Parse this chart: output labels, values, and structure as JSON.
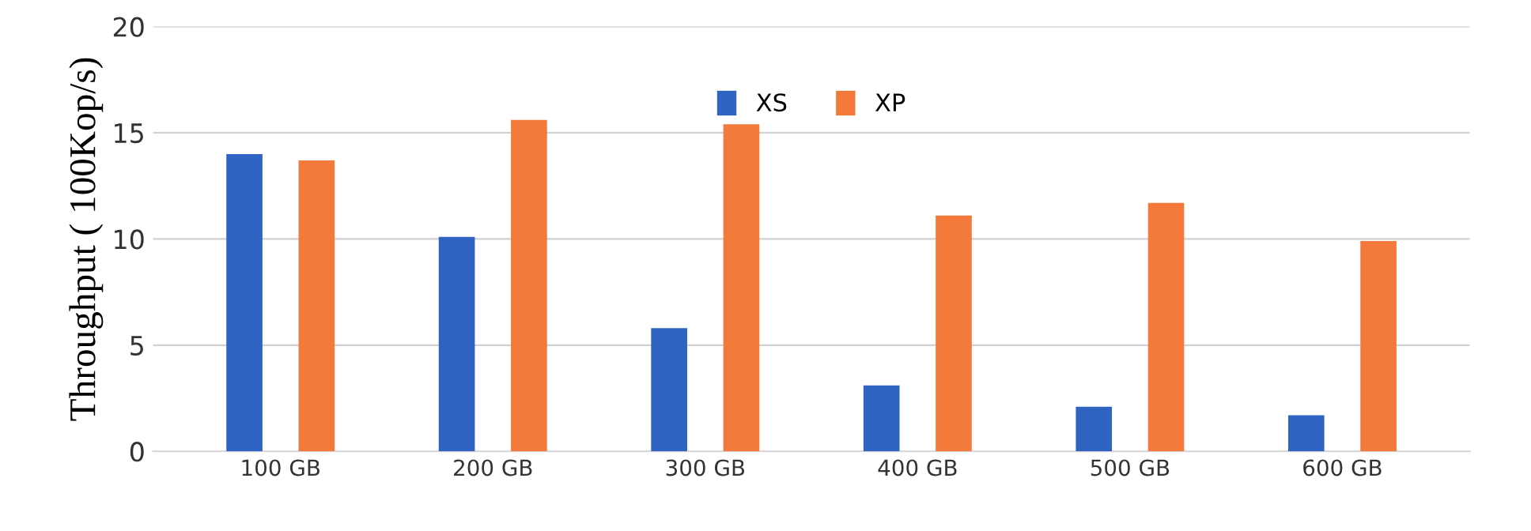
{
  "chart_data": {
    "type": "bar",
    "ylabel": "Throughput ( 100Kop/s)",
    "categories": [
      "100 GB",
      "200 GB",
      "300 GB",
      "400 GB",
      "500 GB",
      "600 GB"
    ],
    "series": [
      {
        "name": "XS",
        "color": "#3064c2",
        "values": [
          14.0,
          10.1,
          5.8,
          3.1,
          2.1,
          1.7
        ]
      },
      {
        "name": "XP",
        "color": "#f47a3c",
        "values": [
          13.7,
          15.6,
          15.4,
          11.1,
          11.7,
          9.9
        ]
      }
    ],
    "ylim": [
      0,
      20
    ],
    "yticks": [
      0,
      5,
      10,
      15,
      20
    ],
    "grid": "y",
    "legend": "top"
  }
}
